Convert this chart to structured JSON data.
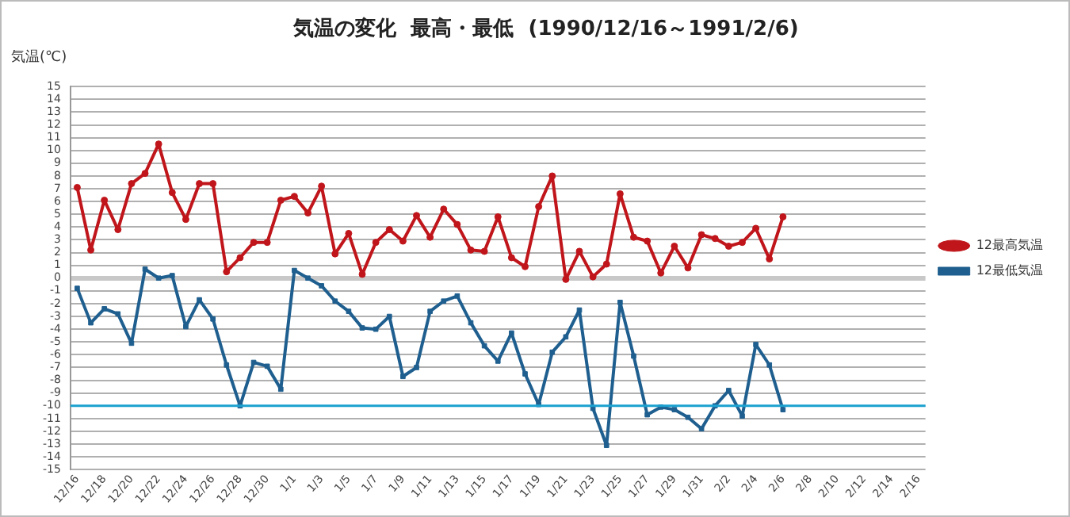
{
  "chart_data": {
    "type": "line",
    "title": "気温の変化  最高・最低  (1990/12/16～1991/2/6)",
    "ylabel": "気温(℃)",
    "categories": [
      "12/16",
      null,
      "12/18",
      null,
      "12/20",
      null,
      "12/22",
      null,
      "12/24",
      null,
      "12/26",
      null,
      "12/28",
      null,
      "12/30",
      null,
      "1/1",
      null,
      "1/3",
      null,
      "1/5",
      null,
      "1/7",
      null,
      "1/9",
      null,
      "1/11",
      null,
      "1/13",
      null,
      "1/15",
      null,
      "1/17",
      null,
      "1/19",
      null,
      "1/21",
      null,
      "1/23",
      null,
      "1/25",
      null,
      "1/27",
      null,
      "1/29",
      null,
      "1/31",
      null,
      "2/2",
      null,
      "2/4",
      null,
      "2/6",
      null,
      "2/8",
      null,
      "2/10",
      null,
      "2/12",
      null,
      "2/14",
      null,
      "2/16"
    ],
    "series": [
      {
        "name": "12最高気温",
        "color": "#c0161b",
        "marker": "circle",
        "values": [
          7.1,
          2.2,
          6.1,
          3.8,
          7.4,
          8.2,
          10.5,
          6.7,
          4.6,
          7.4,
          7.4,
          0.5,
          1.6,
          2.8,
          2.8,
          6.1,
          6.4,
          5.1,
          7.2,
          1.9,
          3.5,
          0.3,
          2.8,
          3.8,
          2.9,
          4.9,
          3.2,
          5.4,
          4.2,
          2.2,
          2.1,
          4.8,
          1.6,
          0.9,
          5.6,
          8.0,
          -0.1,
          2.1,
          0.1,
          1.1,
          6.6,
          3.2,
          2.9,
          0.4,
          2.5,
          0.8,
          3.4,
          3.1,
          2.5,
          2.8,
          3.9,
          1.5,
          4.8,
          null,
          null,
          null,
          null,
          null,
          null,
          null,
          null,
          null,
          null
        ]
      },
      {
        "name": "12最低気温",
        "color": "#1f5f8f",
        "marker": "square",
        "values": [
          -0.8,
          -3.5,
          -2.4,
          -2.8,
          -5.1,
          0.7,
          0.0,
          0.2,
          -3.8,
          -1.7,
          -3.2,
          -6.8,
          -10.0,
          -6.6,
          -6.9,
          -8.7,
          0.6,
          0.0,
          -0.6,
          -1.8,
          -2.6,
          -3.9,
          -4.0,
          -3.0,
          -7.7,
          -7.0,
          -2.6,
          -1.8,
          -1.4,
          -3.5,
          -5.3,
          -6.5,
          -4.3,
          -7.5,
          -9.9,
          -5.8,
          -4.6,
          -2.5,
          -10.2,
          -13.1,
          -1.9,
          -6.1,
          -10.7,
          -10.1,
          -10.3,
          -10.9,
          -11.8,
          -10.0,
          -8.8,
          -10.8,
          -5.2,
          -6.8,
          -10.3,
          null,
          null,
          null,
          null,
          null,
          null,
          null,
          null,
          null,
          null
        ]
      }
    ],
    "ylim": [
      -15,
      15
    ],
    "yticks": [
      -15,
      -14,
      -13,
      -12,
      -11,
      -10,
      -9,
      -8,
      -7,
      -6,
      -5,
      -4,
      -3,
      -2,
      -1,
      0,
      1,
      2,
      3,
      4,
      5,
      6,
      7,
      8,
      9,
      10,
      11,
      12,
      13,
      14,
      15
    ],
    "grid": "y",
    "line_style": "solid",
    "legend": "right",
    "ref_lines": [
      {
        "axis": "y",
        "value": -10,
        "color": "#1ba1d0"
      }
    ]
  }
}
